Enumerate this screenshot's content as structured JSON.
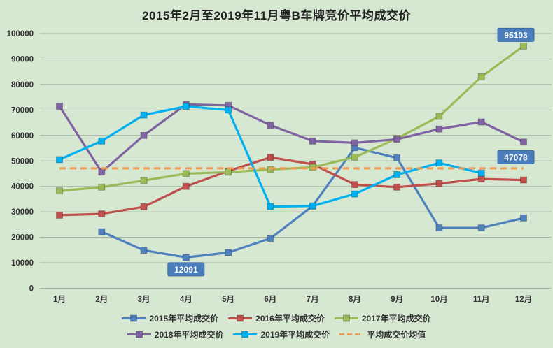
{
  "title": "2015年2月至2019年11月粤B车牌竞价平均成交价",
  "colors": {
    "background": "#d6e8d2",
    "gridline": "#a2b1a0",
    "axis_text": "#333333",
    "annotation_box": "#4a7ebb",
    "annotation_border": "#3a69a5",
    "annotation_text": "#ffffff"
  },
  "chart_data": {
    "type": "line",
    "title": "2015年2月至2019年11月粤B车牌竞价平均成交价",
    "categories": [
      "1月",
      "2月",
      "3月",
      "4月",
      "5月",
      "6月",
      "7月",
      "8月",
      "9月",
      "10月",
      "11月",
      "12月"
    ],
    "xlabel": "",
    "ylabel": "",
    "ylim": [
      0,
      100000
    ],
    "ytick_step": 10000,
    "grid": true,
    "legend_position": "bottom",
    "series": [
      {
        "name": "2015年平均成交价",
        "color": "#4f81bd",
        "style": "solid",
        "marker": "square",
        "values": [
          null,
          22200,
          14900,
          12091,
          14000,
          19600,
          32300,
          55200,
          51200,
          23700,
          23700,
          27600
        ]
      },
      {
        "name": "2016年平均成交价",
        "color": "#c0504d",
        "style": "solid",
        "marker": "square",
        "values": [
          28700,
          29200,
          32000,
          40000,
          46000,
          51400,
          48700,
          40700,
          39700,
          41100,
          42900,
          42500
        ]
      },
      {
        "name": "2017年平均成交价",
        "color": "#9bbb59",
        "style": "solid",
        "marker": "square",
        "values": [
          38200,
          39700,
          42300,
          45000,
          45600,
          46600,
          47500,
          51500,
          58800,
          67500,
          83000,
          95103
        ]
      },
      {
        "name": "2018年平均成交价",
        "color": "#8064a2",
        "style": "solid",
        "marker": "square",
        "values": [
          71500,
          45600,
          60000,
          72200,
          71800,
          64000,
          57800,
          57100,
          58500,
          62500,
          65300,
          57400
        ]
      },
      {
        "name": "2019年平均成交价",
        "color": "#00b0f0",
        "style": "solid",
        "marker": "square",
        "values": [
          50500,
          57800,
          68000,
          71400,
          70000,
          32100,
          32300,
          37000,
          44600,
          49200,
          45200,
          null
        ]
      },
      {
        "name": "平均成交价均值",
        "color": "#f79646",
        "style": "dashed",
        "marker": "none",
        "constant_value": 47078
      }
    ],
    "annotations": [
      {
        "text": "12091",
        "series_index": 0,
        "month_index": 3,
        "position": "below"
      },
      {
        "text": "95103",
        "series_index": 2,
        "month_index": 11,
        "position": "above-left"
      },
      {
        "text": "47078",
        "series_index": 5,
        "month_index": 11,
        "position": "above-left"
      }
    ],
    "legend_rows": [
      [
        0,
        1,
        2
      ],
      [
        3,
        4,
        5
      ]
    ]
  }
}
